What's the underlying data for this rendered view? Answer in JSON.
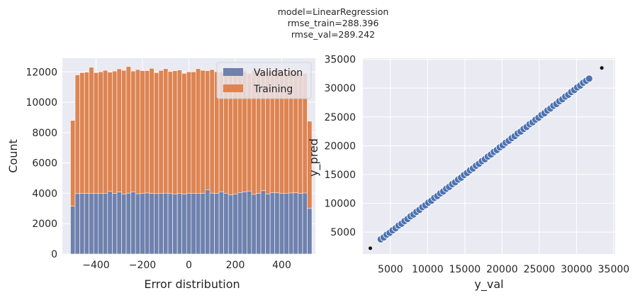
{
  "suptitle": [
    "model=LinearRegression",
    "rmse_train=288.396",
    "rmse_val=289.242"
  ],
  "colors": {
    "axes_bg": "#eaeaf2",
    "grid": "#ffffff",
    "training": "#dd8452",
    "validation": "#4c72b0",
    "validation_bar": "#6f81ad",
    "scatter": "#4c72b0",
    "scatter_edge": "#ffffff",
    "extra_points": "#111111"
  },
  "chart_data": [
    {
      "type": "bar",
      "subtype": "histogram-overlay",
      "xlabel": "Error distribution",
      "ylabel": "Count",
      "xlim": [
        -545,
        545
      ],
      "ylim": [
        0,
        12900
      ],
      "xticks": [
        -400,
        -200,
        0,
        200,
        400
      ],
      "xtick_labels": [
        "−400",
        "−200",
        "0",
        "200",
        "400"
      ],
      "yticks": [
        0,
        2000,
        4000,
        6000,
        8000,
        10000,
        12000
      ],
      "ytick_labels": [
        "0",
        "2000",
        "4000",
        "6000",
        "8000",
        "10000",
        "12000"
      ],
      "grid": true,
      "legend_position": "upper right",
      "bin_start": -510,
      "bin_width": 20,
      "series": [
        {
          "name": "Validation",
          "values": [
            3150,
            3980,
            4000,
            3990,
            4000,
            4000,
            4000,
            4000,
            4120,
            3990,
            4080,
            3950,
            4010,
            4100,
            3970,
            4000,
            4020,
            3990,
            3980,
            4000,
            4010,
            3980,
            3960,
            3990,
            3950,
            4000,
            3990,
            4000,
            3990,
            4240,
            4010,
            3990,
            4100,
            4000,
            3890,
            3950,
            4050,
            4090,
            4150,
            3930,
            3990,
            4170,
            3960,
            4050,
            4030,
            4000,
            4000,
            4020,
            4030,
            4000,
            4020,
            3000
          ]
        },
        {
          "name": "Training",
          "values": [
            8800,
            11800,
            11950,
            11980,
            12300,
            11950,
            12000,
            12100,
            11980,
            12050,
            12200,
            12100,
            12350,
            12050,
            12150,
            12080,
            12080,
            12230,
            11950,
            12090,
            12210,
            12020,
            12070,
            12120,
            11900,
            12000,
            12000,
            12210,
            12100,
            12080,
            12150,
            12010,
            12000,
            12000,
            12190,
            11850,
            12150,
            12050,
            11900,
            12100,
            12140,
            12000,
            12000,
            12020,
            12200,
            12000,
            11950,
            12100,
            12020,
            11900,
            11900,
            8750
          ]
        }
      ]
    },
    {
      "type": "scatter",
      "xlabel": "y_val",
      "ylabel": "y_pred",
      "xlim": [
        1300,
        35200
      ],
      "ylim": [
        1200,
        35200
      ],
      "xticks": [
        5000,
        10000,
        15000,
        20000,
        25000,
        30000,
        35000
      ],
      "xtick_labels": [
        "5000",
        "10000",
        "15000",
        "20000",
        "25000",
        "30000",
        "35000"
      ],
      "yticks": [
        5000,
        10000,
        15000,
        20000,
        25000,
        30000,
        35000
      ],
      "ytick_labels": [
        "5000",
        "10000",
        "15000",
        "20000",
        "25000",
        "30000",
        "35000"
      ],
      "grid": true,
      "series": [
        {
          "name": "",
          "x": [
            3700,
            4100,
            4500,
            4900,
            5300,
            5700,
            6100,
            6500,
            6900,
            7300,
            7700,
            8100,
            8500,
            8900,
            9300,
            9700,
            10100,
            10500,
            10900,
            11300,
            11700,
            12100,
            12500,
            12900,
            13300,
            13700,
            14100,
            14500,
            14900,
            15300,
            15700,
            16100,
            16500,
            16900,
            17300,
            17700,
            18100,
            18500,
            18900,
            19300,
            19700,
            20100,
            20500,
            20900,
            21300,
            21700,
            22100,
            22500,
            22900,
            23300,
            23700,
            24100,
            24500,
            24900,
            25300,
            25700,
            26100,
            26500,
            26900,
            27300,
            27700,
            28100,
            28500,
            28900,
            29300,
            29700,
            30100,
            30500,
            30900,
            31300,
            31700
          ],
          "y": [
            3750,
            4080,
            4550,
            4880,
            5330,
            5680,
            6140,
            6470,
            6930,
            7280,
            7740,
            8070,
            8530,
            8870,
            9340,
            9670,
            10130,
            10460,
            10940,
            11270,
            11730,
            12060,
            12540,
            12860,
            13330,
            13660,
            14140,
            14460,
            14930,
            15270,
            15740,
            16060,
            16530,
            16870,
            17340,
            17660,
            18130,
            18470,
            18940,
            19260,
            19730,
            20070,
            20540,
            20860,
            21330,
            21670,
            22140,
            22460,
            22930,
            23270,
            23740,
            24060,
            24530,
            24870,
            25340,
            25660,
            26130,
            26470,
            26940,
            27260,
            27730,
            28070,
            28540,
            28860,
            29330,
            29670,
            30140,
            30460,
            30930,
            31270,
            31650
          ]
        },
        {
          "name": "",
          "x": [
            2300,
            33400
          ],
          "y": [
            2200,
            33500
          ]
        }
      ]
    }
  ]
}
